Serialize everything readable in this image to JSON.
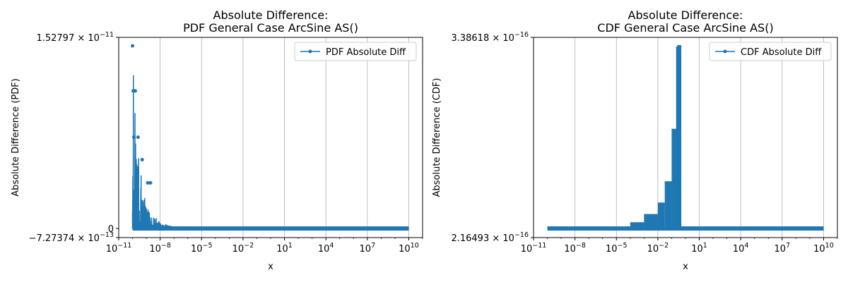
{
  "chart_data": [
    {
      "type": "line",
      "title_line1": "Absolute Difference:",
      "title_line2": "PDF General Case ArcSine AS()",
      "xlabel": "x",
      "ylabel": "Absolute Difference (PDF)",
      "xscale": "log",
      "xlim": [
        1e-11,
        100000000000.0
      ],
      "x_tick_labels": [
        {
          "base": "10",
          "exp": "−11"
        },
        {
          "base": "10",
          "exp": "−8"
        },
        {
          "base": "10",
          "exp": "−5"
        },
        {
          "base": "10",
          "exp": "−2"
        },
        {
          "base": "10",
          "exp": "1"
        },
        {
          "base": "10",
          "exp": "4"
        },
        {
          "base": "10",
          "exp": "7"
        },
        {
          "base": "10",
          "exp": "10"
        }
      ],
      "x_tick_values_log10": [
        -11,
        -8,
        -5,
        -2,
        1,
        4,
        7,
        10
      ],
      "ylim": [
        -7.27374e-13,
        1.52797e-11
      ],
      "y_tick_labels": [
        {
          "mant": "−7.27374 × 10",
          "exp": "−13"
        },
        {
          "mant": "0",
          "exp": ""
        },
        {
          "mant": "1.52797 × 10",
          "exp": "−11"
        }
      ],
      "y_tick_values": [
        -7.27374e-13,
        0,
        1.52797e-11
      ],
      "grid": "x-major",
      "legend_placement": "top-right",
      "series": [
        {
          "name": "PDF Absolute Diff",
          "color": "#1f77b4",
          "x_range_log10": [
            -10,
            10
          ],
          "profile_log10x": [
            -10,
            -9.85,
            -9.7,
            -9.5,
            -9.3,
            -9.0,
            -8.7,
            -8.3,
            -8.0,
            -7.5,
            -7.0,
            -6.5,
            -6.0,
            -5.0,
            10
          ],
          "profile_peak": [
            1.46e-11,
            1.1e-11,
            7.3e-12,
            5.5e-12,
            3.65e-12,
            1.83e-12,
            1.2e-12,
            9.1e-13,
            4.6e-13,
            3e-13,
            1.5e-13,
            8e-14,
            4e-14,
            1e-14,
            0
          ]
        }
      ]
    },
    {
      "type": "line",
      "title_line1": "Absolute Difference:",
      "title_line2": "CDF General Case ArcSine AS()",
      "xlabel": "x",
      "ylabel": "Absolute Difference (CDF)",
      "xscale": "log",
      "xlim": [
        1e-11,
        100000000000.0
      ],
      "x_tick_labels": [
        {
          "base": "10",
          "exp": "−11"
        },
        {
          "base": "10",
          "exp": "−8"
        },
        {
          "base": "10",
          "exp": "−5"
        },
        {
          "base": "10",
          "exp": "−2"
        },
        {
          "base": "10",
          "exp": "1"
        },
        {
          "base": "10",
          "exp": "4"
        },
        {
          "base": "10",
          "exp": "7"
        },
        {
          "base": "10",
          "exp": "10"
        }
      ],
      "x_tick_values_log10": [
        -11,
        -8,
        -5,
        -2,
        1,
        4,
        7,
        10
      ],
      "ylim": [
        2.16493e-16,
        3.38618e-16
      ],
      "y_tick_labels": [
        {
          "mant": "2.16493 × 10",
          "exp": "−16"
        },
        {
          "mant": "3.38618 × 10",
          "exp": "−16"
        }
      ],
      "y_tick_values": [
        2.16493e-16,
        3.38618e-16
      ],
      "grid": "x-major",
      "legend_placement": "top-right",
      "series": [
        {
          "name": "CDF Absolute Diff",
          "color": "#1f77b4",
          "baseline": 2.2204e-16,
          "x_range_log10": [
            -10,
            10
          ],
          "steps": [
            {
              "from": -10.0,
              "to": -5.0,
              "value": 2.2204e-16
            },
            {
              "from": -5.0,
              "to": -4.0,
              "value": 2.23e-16
            },
            {
              "from": -4.0,
              "to": -3.0,
              "value": 2.25e-16
            },
            {
              "from": -3.0,
              "to": -2.0,
              "value": 2.3e-16
            },
            {
              "from": -2.0,
              "to": -1.5,
              "value": 2.37e-16
            },
            {
              "from": -1.5,
              "to": -1.0,
              "value": 2.5e-16
            },
            {
              "from": -1.0,
              "to": -0.6,
              "value": 2.82e-16
            },
            {
              "from": -0.6,
              "to": -0.3,
              "value": 3.33e-16
            },
            {
              "from": -0.3,
              "to": 10.0,
              "value": 2.2204e-16
            }
          ]
        }
      ]
    }
  ]
}
